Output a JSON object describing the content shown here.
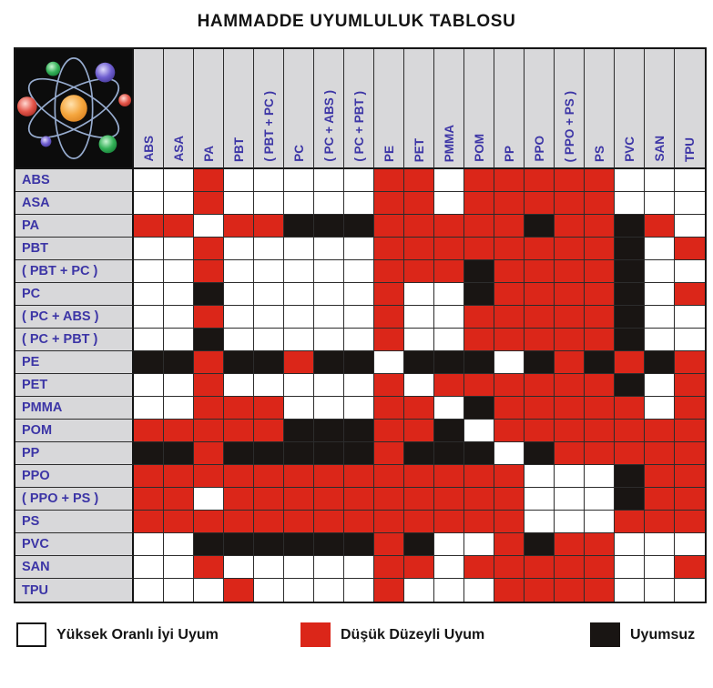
{
  "title": "HAMMADDE UYUMLULUK TABLOSU",
  "styles": {
    "header_bg": "#D8D8DA",
    "label_text_color": "#3C35A6",
    "grid_line_color": "#2C2C2C"
  },
  "chart_data": {
    "type": "heatmap",
    "title": "HAMMADDE UYUMLULUK TABLOSU",
    "x_categories": [
      "ABS",
      "ASA",
      "PA",
      "PBT",
      "( PBT + PC )",
      "PC",
      "( PC + ABS )",
      "( PC + PBT )",
      "PE",
      "PET",
      "PMMA",
      "POM",
      "PP",
      "PPO",
      "( PPO + PS )",
      "PS",
      "PVC",
      "SAN",
      "TPU"
    ],
    "y_categories": [
      "ABS",
      "ASA",
      "PA",
      "PBT",
      "( PBT + PC )",
      "PC",
      "( PC + ABS )",
      "( PC + PBT )",
      "PE",
      "PET",
      "PMMA",
      "POM",
      "PP",
      "PPO",
      "( PPO + PS )",
      "PS",
      "PVC",
      "SAN",
      "TPU"
    ],
    "code_colors": {
      "W": "#FFFFFF",
      "R": "#DB2619",
      "B": "#191513"
    },
    "rows": [
      "WWRWWWWWRRWRRRRRWWW",
      "WWRWWWWWRRWRRRRRWWW",
      "RRWRRBBBRRRRRBRRBRW",
      "WWRWWWWWRRRRRRRRBWR",
      "WWRWWWWWRRRBRRRRBWW",
      "WWBWWWWWRWWBRRRRBWR",
      "WWRWWWWWRWWRRRRRBWW",
      "WWBWWWWWRWWRRRRRBWW",
      "BBRBBRBBWBBBWBRBRBR",
      "WWRWWWWWRWRRRRRRBWR",
      "WWRRRWWWRRWBRRRRRWR",
      "RRRRRBBBRRBWRRRRRRR",
      "BBRBBBBBRBBBWBRRRRR",
      "RRRRRRRRRRRRRWWWBRR",
      "RRWRRRRRRRRRRWWWBRR",
      "RRRRRRRRRRRRRWWWRRR",
      "WWBBBBBBRBWWRBRRWWW",
      "WWRWWWWWRRWRRRRRWWR",
      "WWWRWWWWRWWWRRRRWWW"
    ],
    "legend": [
      {
        "code": "W",
        "color": "#FFFFFF",
        "label": "Yüksek Oranlı İyi Uyum"
      },
      {
        "code": "R",
        "color": "#DB2619",
        "label": "Düşük Düzeyli Uyum"
      },
      {
        "code": "B",
        "color": "#191513",
        "label": "Uyumsuz"
      }
    ],
    "legend_position": "bottom",
    "grid": true
  }
}
